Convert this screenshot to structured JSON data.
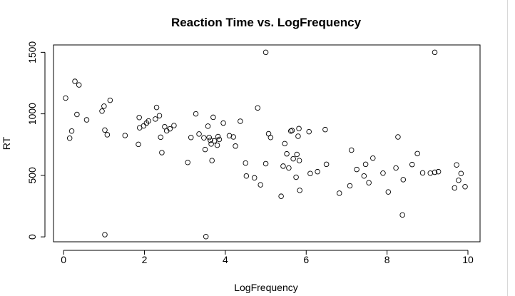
{
  "chart_data": {
    "type": "scatter",
    "title": "Reaction Time vs. LogFrequency",
    "xlabel": "LogFrequency",
    "ylabel": "RT",
    "xlim": [
      -0.25,
      10.3
    ],
    "ylim": [
      -40,
      1560
    ],
    "xticks": [
      0,
      2,
      4,
      6,
      8,
      10
    ],
    "yticks": [
      0,
      500,
      1000,
      1500
    ],
    "xtick_labels": [
      "0",
      "2",
      "4",
      "6",
      "8",
      "10"
    ],
    "ytick_labels": [
      "0",
      "500",
      "1000",
      "1500"
    ],
    "grid": false,
    "legend": "none",
    "marker": "open-circle",
    "points": [
      [
        0.05,
        1128
      ],
      [
        0.15,
        802
      ],
      [
        0.2,
        860
      ],
      [
        0.28,
        1264
      ],
      [
        0.33,
        995
      ],
      [
        0.38,
        1235
      ],
      [
        0.57,
        951
      ],
      [
        0.95,
        1022
      ],
      [
        1.0,
        1062
      ],
      [
        1.02,
        868
      ],
      [
        1.02,
        18
      ],
      [
        1.08,
        830
      ],
      [
        1.15,
        1110
      ],
      [
        1.52,
        824
      ],
      [
        1.85,
        752
      ],
      [
        1.87,
        970
      ],
      [
        1.88,
        887
      ],
      [
        1.98,
        902
      ],
      [
        2.05,
        925
      ],
      [
        2.1,
        942
      ],
      [
        2.27,
        958
      ],
      [
        2.3,
        1052
      ],
      [
        2.37,
        985
      ],
      [
        2.4,
        810
      ],
      [
        2.43,
        685
      ],
      [
        2.5,
        895
      ],
      [
        2.55,
        862
      ],
      [
        2.63,
        878
      ],
      [
        2.73,
        905
      ],
      [
        3.07,
        605
      ],
      [
        3.15,
        808
      ],
      [
        3.27,
        1000
      ],
      [
        3.35,
        836
      ],
      [
        3.47,
        805
      ],
      [
        3.5,
        710
      ],
      [
        3.52,
        2
      ],
      [
        3.57,
        900
      ],
      [
        3.6,
        808
      ],
      [
        3.63,
        785
      ],
      [
        3.65,
        755
      ],
      [
        3.67,
        620
      ],
      [
        3.7,
        972
      ],
      [
        3.73,
        780
      ],
      [
        3.8,
        745
      ],
      [
        3.82,
        815
      ],
      [
        3.85,
        792
      ],
      [
        3.95,
        925
      ],
      [
        4.1,
        822
      ],
      [
        4.2,
        812
      ],
      [
        4.25,
        738
      ],
      [
        4.37,
        940
      ],
      [
        4.5,
        600
      ],
      [
        4.52,
        495
      ],
      [
        4.72,
        480
      ],
      [
        4.8,
        1048
      ],
      [
        4.87,
        423
      ],
      [
        5.0,
        1500
      ],
      [
        5.0,
        595
      ],
      [
        5.07,
        838
      ],
      [
        5.12,
        808
      ],
      [
        5.38,
        330
      ],
      [
        5.43,
        575
      ],
      [
        5.47,
        758
      ],
      [
        5.52,
        675
      ],
      [
        5.57,
        560
      ],
      [
        5.62,
        860
      ],
      [
        5.65,
        865
      ],
      [
        5.68,
        635
      ],
      [
        5.75,
        485
      ],
      [
        5.77,
        670
      ],
      [
        5.8,
        818
      ],
      [
        5.82,
        880
      ],
      [
        5.83,
        620
      ],
      [
        5.84,
        378
      ],
      [
        6.07,
        855
      ],
      [
        6.1,
        515
      ],
      [
        6.28,
        530
      ],
      [
        6.47,
        872
      ],
      [
        6.5,
        590
      ],
      [
        6.82,
        355
      ],
      [
        7.08,
        415
      ],
      [
        7.12,
        705
      ],
      [
        7.25,
        548
      ],
      [
        7.43,
        495
      ],
      [
        7.47,
        590
      ],
      [
        7.55,
        440
      ],
      [
        7.65,
        640
      ],
      [
        7.9,
        518
      ],
      [
        8.03,
        365
      ],
      [
        8.22,
        560
      ],
      [
        8.27,
        812
      ],
      [
        8.38,
        178
      ],
      [
        8.4,
        465
      ],
      [
        8.62,
        588
      ],
      [
        8.75,
        677
      ],
      [
        8.88,
        520
      ],
      [
        9.07,
        518
      ],
      [
        9.18,
        1500
      ],
      [
        9.18,
        525
      ],
      [
        9.27,
        530
      ],
      [
        9.67,
        398
      ],
      [
        9.72,
        585
      ],
      [
        9.77,
        460
      ],
      [
        9.83,
        515
      ],
      [
        9.93,
        408
      ]
    ]
  }
}
